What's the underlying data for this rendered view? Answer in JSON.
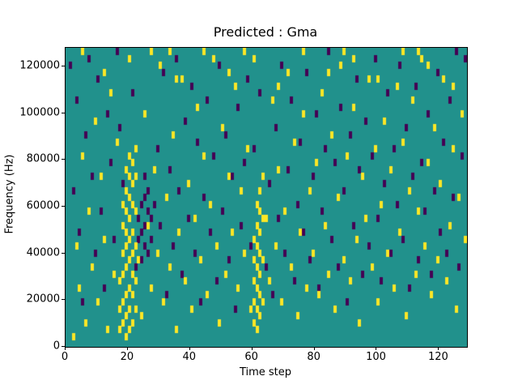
{
  "figure": {
    "title": "Predicted : Gma",
    "xlabel": "Time step",
    "ylabel": "Frequency (Hz)"
  },
  "chart_data": {
    "type": "heatmap",
    "title": "Predicted : Gma",
    "xlabel": "Time step",
    "ylabel": "Frequency (Hz)",
    "x_range": [
      0,
      129
    ],
    "y_range": [
      0,
      128000
    ],
    "x_ticks": [
      0,
      20,
      40,
      60,
      80,
      100,
      120
    ],
    "y_ticks": [
      0,
      20000,
      40000,
      60000,
      80000,
      100000,
      120000
    ],
    "grid": {
      "cols": 129,
      "rows": 43
    },
    "colors": {
      "background": "#21918c",
      "high": "#fde725",
      "low": "#440154",
      "axis": "#000000"
    },
    "legend": "none",
    "cells_high": [
      [
        17,
        2
      ],
      [
        17,
        5
      ],
      [
        17,
        9
      ],
      [
        18,
        3
      ],
      [
        18,
        6
      ],
      [
        18,
        10
      ],
      [
        18,
        13
      ],
      [
        18,
        17
      ],
      [
        18,
        20
      ],
      [
        19,
        1
      ],
      [
        19,
        4
      ],
      [
        19,
        7
      ],
      [
        19,
        11
      ],
      [
        19,
        14
      ],
      [
        19,
        16
      ],
      [
        19,
        19
      ],
      [
        19,
        22
      ],
      [
        19,
        25
      ],
      [
        20,
        2
      ],
      [
        20,
        5
      ],
      [
        20,
        8
      ],
      [
        20,
        12
      ],
      [
        20,
        15
      ],
      [
        20,
        18
      ],
      [
        20,
        21
      ],
      [
        20,
        24
      ],
      [
        20,
        27
      ],
      [
        21,
        3
      ],
      [
        21,
        7
      ],
      [
        21,
        10
      ],
      [
        21,
        13
      ],
      [
        21,
        16
      ],
      [
        21,
        20
      ],
      [
        21,
        23
      ],
      [
        21,
        26
      ],
      [
        22,
        5
      ],
      [
        22,
        9
      ],
      [
        22,
        14
      ],
      [
        22,
        19
      ],
      [
        22,
        24
      ],
      [
        22,
        28
      ],
      [
        60,
        3
      ],
      [
        60,
        6
      ],
      [
        60,
        9
      ],
      [
        60,
        12
      ],
      [
        60,
        15
      ],
      [
        61,
        2
      ],
      [
        61,
        5
      ],
      [
        61,
        8
      ],
      [
        61,
        11
      ],
      [
        61,
        14
      ],
      [
        61,
        17
      ],
      [
        61,
        20
      ],
      [
        62,
        4
      ],
      [
        62,
        7
      ],
      [
        62,
        10
      ],
      [
        62,
        13
      ],
      [
        62,
        16
      ],
      [
        62,
        19
      ],
      [
        62,
        22
      ],
      [
        63,
        6
      ],
      [
        63,
        12
      ],
      [
        63,
        18
      ],
      [
        63,
        24
      ],
      [
        2,
        1
      ],
      [
        3,
        14
      ],
      [
        4,
        8
      ],
      [
        5,
        27
      ],
      [
        6,
        3
      ],
      [
        7,
        19
      ],
      [
        8,
        11
      ],
      [
        9,
        32
      ],
      [
        10,
        6
      ],
      [
        11,
        24
      ],
      [
        12,
        15
      ],
      [
        13,
        2
      ],
      [
        14,
        36
      ],
      [
        15,
        10
      ],
      [
        16,
        29
      ],
      [
        23,
        12
      ],
      [
        24,
        4
      ],
      [
        25,
        33
      ],
      [
        26,
        17
      ],
      [
        27,
        8
      ],
      [
        28,
        25
      ],
      [
        29,
        13
      ],
      [
        30,
        40
      ],
      [
        31,
        6
      ],
      [
        32,
        21
      ],
      [
        33,
        11
      ],
      [
        34,
        30
      ],
      [
        35,
        2
      ],
      [
        36,
        16
      ],
      [
        37,
        38
      ],
      [
        38,
        9
      ],
      [
        39,
        23
      ],
      [
        40,
        5
      ],
      [
        41,
        18
      ],
      [
        42,
        34
      ],
      [
        43,
        12
      ],
      [
        44,
        27
      ],
      [
        45,
        7
      ],
      [
        46,
        20
      ],
      [
        47,
        41
      ],
      [
        48,
        14
      ],
      [
        49,
        3
      ],
      [
        50,
        31
      ],
      [
        51,
        10
      ],
      [
        52,
        24
      ],
      [
        53,
        16
      ],
      [
        54,
        37
      ],
      [
        55,
        8
      ],
      [
        56,
        22
      ],
      [
        57,
        13
      ],
      [
        58,
        28
      ],
      [
        59,
        5
      ],
      [
        64,
        18
      ],
      [
        65,
        9
      ],
      [
        66,
        35
      ],
      [
        67,
        14
      ],
      [
        68,
        25
      ],
      [
        69,
        6
      ],
      [
        70,
        19
      ],
      [
        71,
        39
      ],
      [
        72,
        11
      ],
      [
        73,
        29
      ],
      [
        74,
        4
      ],
      [
        75,
        16
      ],
      [
        76,
        33
      ],
      [
        77,
        8
      ],
      [
        78,
        22
      ],
      [
        79,
        13
      ],
      [
        80,
        26
      ],
      [
        81,
        7
      ],
      [
        82,
        36
      ],
      [
        83,
        17
      ],
      [
        84,
        10
      ],
      [
        85,
        30
      ],
      [
        86,
        5
      ],
      [
        87,
        21
      ],
      [
        88,
        40
      ],
      [
        89,
        12
      ],
      [
        90,
        27
      ],
      [
        91,
        9
      ],
      [
        92,
        34
      ],
      [
        93,
        15
      ],
      [
        94,
        3
      ],
      [
        95,
        24
      ],
      [
        96,
        18
      ],
      [
        97,
        38
      ],
      [
        98,
        11
      ],
      [
        99,
        28
      ],
      [
        100,
        6
      ],
      [
        101,
        20
      ],
      [
        102,
        32
      ],
      [
        103,
        13
      ],
      [
        104,
        25
      ],
      [
        105,
        8
      ],
      [
        106,
        37
      ],
      [
        107,
        16
      ],
      [
        108,
        29
      ],
      [
        109,
        4
      ],
      [
        110,
        22
      ],
      [
        111,
        35
      ],
      [
        112,
        10
      ],
      [
        113,
        19
      ],
      [
        114,
        41
      ],
      [
        115,
        14
      ],
      [
        116,
        26
      ],
      [
        117,
        7
      ],
      [
        118,
        31
      ],
      [
        119,
        12
      ],
      [
        120,
        23
      ],
      [
        121,
        38
      ],
      [
        122,
        9
      ],
      [
        123,
        17
      ],
      [
        124,
        28
      ],
      [
        125,
        5
      ],
      [
        126,
        21
      ],
      [
        127,
        33
      ],
      [
        128,
        15
      ],
      [
        5,
        42
      ],
      [
        12,
        39
      ],
      [
        20,
        41
      ],
      [
        27,
        42
      ],
      [
        35,
        38
      ],
      [
        44,
        42
      ],
      [
        52,
        39
      ],
      [
        60,
        41
      ],
      [
        68,
        37
      ],
      [
        76,
        42
      ],
      [
        84,
        39
      ],
      [
        92,
        41
      ],
      [
        100,
        38
      ],
      [
        108,
        42
      ],
      [
        116,
        40
      ],
      [
        124,
        37
      ],
      [
        33,
        42
      ],
      [
        57,
        42
      ],
      [
        89,
        42
      ],
      [
        113,
        42
      ]
    ],
    "cells_low": [
      [
        23,
        15
      ],
      [
        23,
        18
      ],
      [
        24,
        12
      ],
      [
        24,
        16
      ],
      [
        24,
        20
      ],
      [
        25,
        14
      ],
      [
        25,
        17
      ],
      [
        25,
        21
      ],
      [
        25,
        24
      ],
      [
        26,
        13
      ],
      [
        26,
        19
      ],
      [
        26,
        22
      ],
      [
        27,
        15
      ],
      [
        27,
        18
      ],
      [
        28,
        20
      ],
      [
        1,
        40
      ],
      [
        2,
        22
      ],
      [
        3,
        35
      ],
      [
        4,
        16
      ],
      [
        5,
        6
      ],
      [
        6,
        30
      ],
      [
        7,
        41
      ],
      [
        8,
        24
      ],
      [
        9,
        13
      ],
      [
        10,
        38
      ],
      [
        11,
        19
      ],
      [
        12,
        8
      ],
      [
        13,
        33
      ],
      [
        14,
        26
      ],
      [
        15,
        15
      ],
      [
        16,
        42
      ],
      [
        17,
        31
      ],
      [
        18,
        23
      ],
      [
        21,
        36
      ],
      [
        22,
        11
      ],
      [
        29,
        28
      ],
      [
        30,
        17
      ],
      [
        31,
        39
      ],
      [
        32,
        7
      ],
      [
        33,
        25
      ],
      [
        34,
        14
      ],
      [
        35,
        41
      ],
      [
        36,
        22
      ],
      [
        37,
        10
      ],
      [
        38,
        32
      ],
      [
        39,
        18
      ],
      [
        40,
        37
      ],
      [
        41,
        13
      ],
      [
        42,
        29
      ],
      [
        43,
        6
      ],
      [
        44,
        21
      ],
      [
        45,
        35
      ],
      [
        46,
        16
      ],
      [
        47,
        27
      ],
      [
        48,
        9
      ],
      [
        49,
        40
      ],
      [
        50,
        19
      ],
      [
        51,
        30
      ],
      [
        52,
        12
      ],
      [
        53,
        24
      ],
      [
        54,
        5
      ],
      [
        55,
        34
      ],
      [
        56,
        17
      ],
      [
        57,
        26
      ],
      [
        58,
        38
      ],
      [
        59,
        14
      ],
      [
        60,
        28
      ],
      [
        62,
        36
      ],
      [
        64,
        11
      ],
      [
        65,
        23
      ],
      [
        66,
        7
      ],
      [
        67,
        31
      ],
      [
        68,
        18
      ],
      [
        69,
        40
      ],
      [
        70,
        13
      ],
      [
        71,
        25
      ],
      [
        72,
        35
      ],
      [
        73,
        9
      ],
      [
        74,
        20
      ],
      [
        75,
        29
      ],
      [
        76,
        16
      ],
      [
        77,
        39
      ],
      [
        78,
        12
      ],
      [
        79,
        24
      ],
      [
        80,
        33
      ],
      [
        81,
        8
      ],
      [
        82,
        19
      ],
      [
        83,
        28
      ],
      [
        84,
        42
      ],
      [
        85,
        15
      ],
      [
        86,
        26
      ],
      [
        87,
        11
      ],
      [
        88,
        34
      ],
      [
        89,
        22
      ],
      [
        90,
        6
      ],
      [
        91,
        30
      ],
      [
        92,
        17
      ],
      [
        93,
        38
      ],
      [
        94,
        25
      ],
      [
        95,
        10
      ],
      [
        96,
        32
      ],
      [
        97,
        14
      ],
      [
        98,
        27
      ],
      [
        99,
        41
      ],
      [
        100,
        18
      ],
      [
        101,
        9
      ],
      [
        102,
        23
      ],
      [
        103,
        36
      ],
      [
        104,
        13
      ],
      [
        105,
        28
      ],
      [
        106,
        20
      ],
      [
        107,
        40
      ],
      [
        108,
        15
      ],
      [
        109,
        31
      ],
      [
        110,
        8
      ],
      [
        111,
        24
      ],
      [
        112,
        37
      ],
      [
        113,
        12
      ],
      [
        114,
        26
      ],
      [
        115,
        19
      ],
      [
        116,
        33
      ],
      [
        117,
        10
      ],
      [
        118,
        22
      ],
      [
        119,
        39
      ],
      [
        120,
        16
      ],
      [
        121,
        29
      ],
      [
        122,
        13
      ],
      [
        123,
        35
      ],
      [
        124,
        21
      ],
      [
        125,
        42
      ],
      [
        126,
        11
      ],
      [
        127,
        27
      ],
      [
        128,
        41
      ]
    ]
  }
}
